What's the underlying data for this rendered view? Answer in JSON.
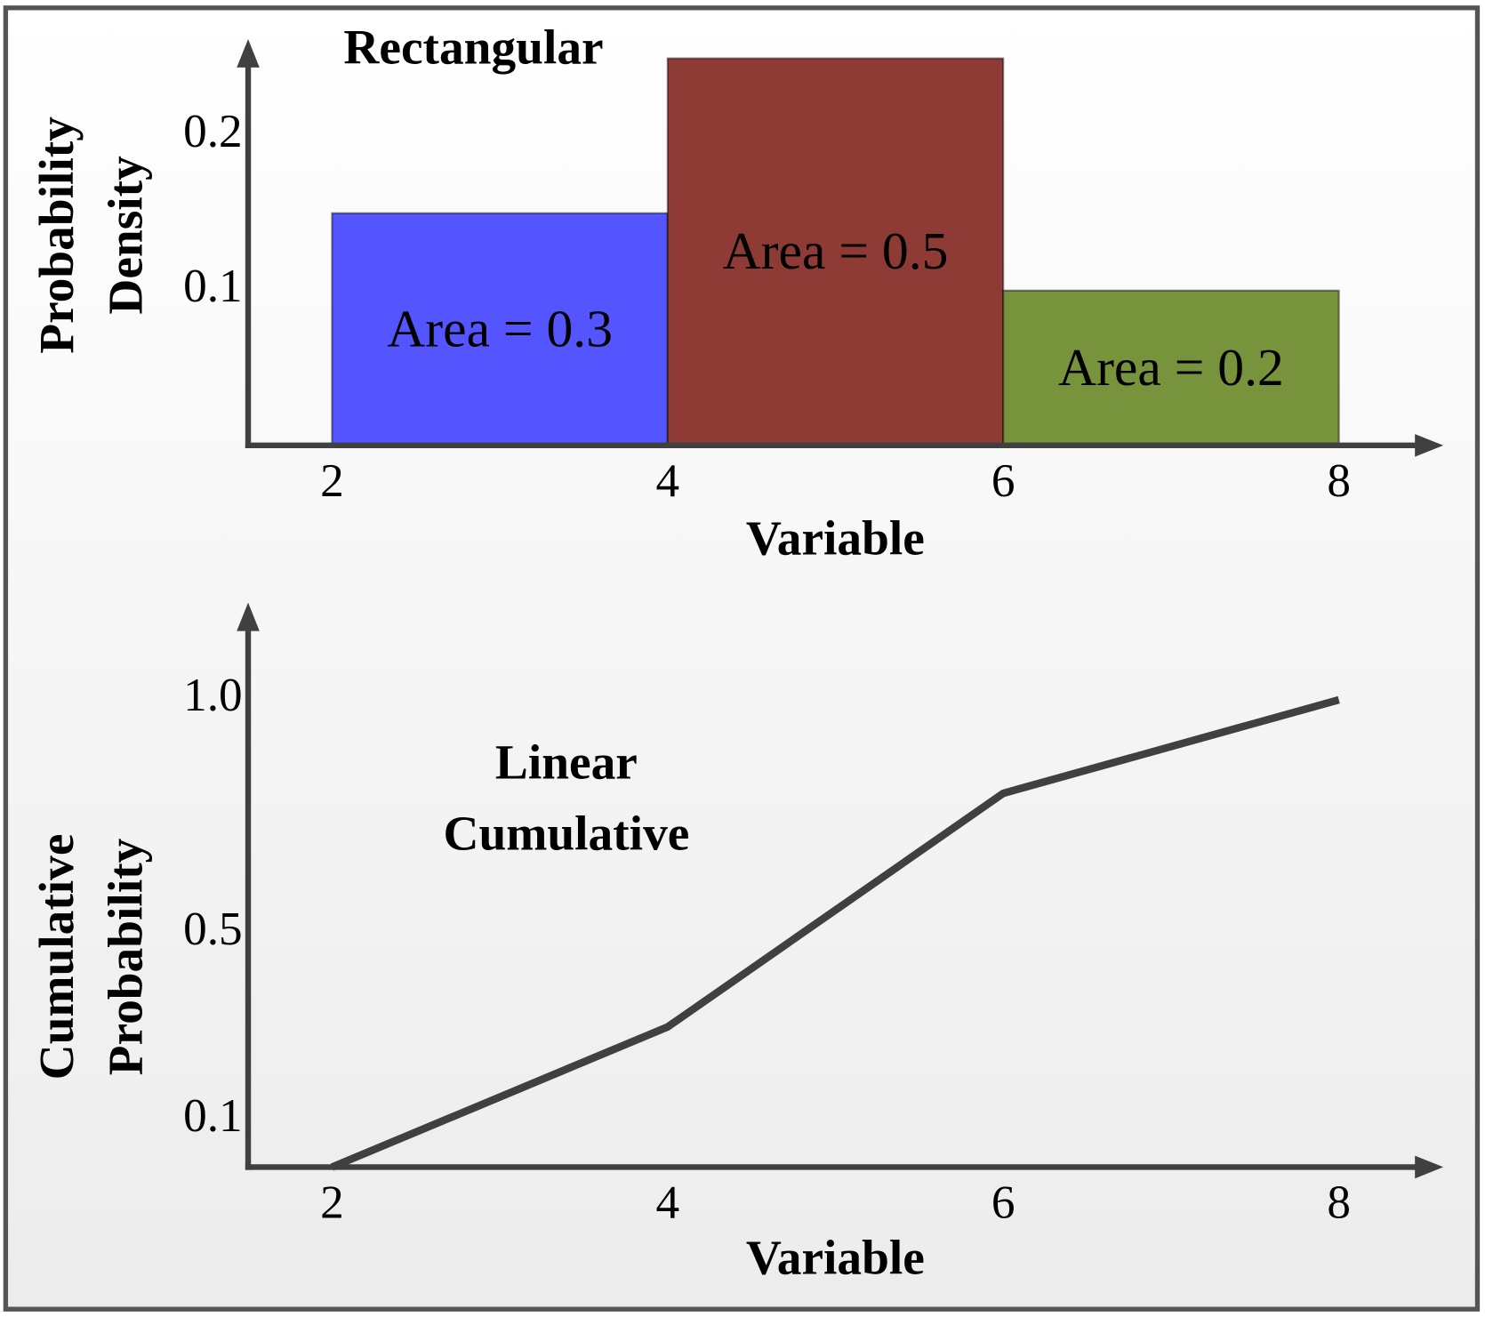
{
  "chart_data": [
    {
      "type": "histogram",
      "title": [
        "Rectangular"
      ],
      "xlabel": "Variable",
      "ylabel": [
        "Probability",
        "Density"
      ],
      "bins": [
        2,
        4,
        6,
        8
      ],
      "values": [
        0.15,
        0.25,
        0.1
      ],
      "colors": [
        "#5555ff",
        "#8e3a35",
        "#77933c"
      ],
      "annotations": [
        "Area = 0.3",
        "Area = 0.5",
        "Area = 0.2"
      ],
      "xlim": [
        1.5,
        8.6
      ],
      "xticks": [
        2,
        4,
        6,
        8
      ],
      "ylim": [
        0,
        0.26
      ],
      "yticks": [
        0.1,
        0.2
      ],
      "grid": false
    },
    {
      "type": "line",
      "title": [
        "Linear",
        "Cumulative"
      ],
      "xlabel": "Variable",
      "ylabel": [
        "Cumulative",
        "Probability"
      ],
      "x": [
        2,
        4,
        6,
        8
      ],
      "series": [
        {
          "values": [
            0,
            0.3,
            0.8,
            1.0
          ],
          "color": "#404040"
        }
      ],
      "xlim": [
        1.5,
        8.6
      ],
      "xticks": [
        2,
        4,
        6,
        8
      ],
      "ylim": [
        0,
        1.2
      ],
      "yticks": [
        0.1,
        0.5,
        {
          "value": 1.0,
          "label": "1.0"
        }
      ],
      "grid": false
    }
  ]
}
